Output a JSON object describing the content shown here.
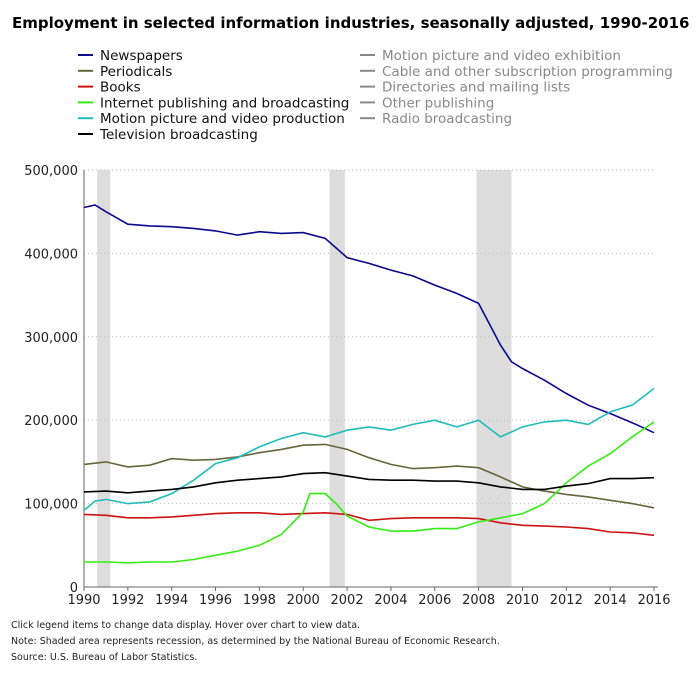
{
  "chart_data": {
    "type": "line",
    "title": "Employment in selected information industries, seasonally adjusted, 1990-2016",
    "xlim": [
      1990,
      2016
    ],
    "ylim": [
      0,
      500000
    ],
    "x_ticks": [
      "1990",
      "1992",
      "1994",
      "1996",
      "1998",
      "2000",
      "2002",
      "2004",
      "2006",
      "2008",
      "2010",
      "2012",
      "2014",
      "2016"
    ],
    "y_ticks": [
      "0",
      "100,000",
      "200,000",
      "300,000",
      "400,000",
      "500,000"
    ],
    "grid": "horizontal dotted",
    "legend_placement": "top",
    "recessions": [
      [
        1990.6,
        1991.2
      ],
      [
        2001.2,
        2001.9
      ],
      [
        2007.9,
        2009.5
      ]
    ],
    "recession_color": "#dddddd",
    "series": [
      {
        "name": "Newspapers",
        "color": "#0a0a8c",
        "active": true,
        "x": [
          1990,
          1990.5,
          1991,
          1992,
          1993,
          1994,
          1995,
          1996,
          1997,
          1998,
          1999,
          2000,
          2001,
          2002,
          2003,
          2004,
          2005,
          2006,
          2007,
          2008,
          2009,
          2009.5,
          2010,
          2011,
          2012,
          2013,
          2014,
          2015,
          2016
        ],
        "y": [
          455000,
          458000,
          450000,
          435000,
          433000,
          432000,
          430000,
          427000,
          422000,
          426000,
          424000,
          425000,
          418000,
          395000,
          388000,
          380000,
          373000,
          362000,
          352000,
          340000,
          290000,
          270000,
          262000,
          248000,
          232000,
          218000,
          208000,
          197000,
          185000
        ]
      },
      {
        "name": "Periodicals",
        "color": "#66663c",
        "active": true,
        "x": [
          1990,
          1991,
          1992,
          1993,
          1994,
          1995,
          1996,
          1997,
          1998,
          1999,
          2000,
          2001,
          2002,
          2003,
          2004,
          2005,
          2006,
          2007,
          2008,
          2009,
          2010,
          2011,
          2012,
          2013,
          2014,
          2015,
          2016
        ],
        "y": [
          147000,
          150000,
          144000,
          146000,
          154000,
          152000,
          153000,
          156000,
          161000,
          165000,
          170000,
          171000,
          165000,
          155000,
          147000,
          142000,
          143000,
          145000,
          143000,
          132000,
          120000,
          115000,
          111000,
          108000,
          104000,
          100000,
          95000
        ]
      },
      {
        "name": "Books",
        "color": "#cc1111",
        "active": true,
        "x": [
          1990,
          1991,
          1992,
          1993,
          1994,
          1995,
          1996,
          1997,
          1998,
          1999,
          2000,
          2001,
          2002,
          2003,
          2004,
          2005,
          2006,
          2007,
          2008,
          2009,
          2010,
          2011,
          2012,
          2013,
          2014,
          2015,
          2016
        ],
        "y": [
          87000,
          86000,
          83000,
          83000,
          84000,
          86000,
          88000,
          89000,
          89000,
          87000,
          88000,
          89000,
          87000,
          80000,
          82000,
          83000,
          83000,
          83000,
          82000,
          77000,
          74000,
          73000,
          72000,
          70000,
          66000,
          65000,
          62000
        ]
      },
      {
        "name": "Internet publishing and broadcasting",
        "color": "#33ee11",
        "active": true,
        "x": [
          1990,
          1991,
          1992,
          1993,
          1994,
          1995,
          1996,
          1997,
          1998,
          1999,
          2000,
          2000.3,
          2001,
          2001.5,
          2002,
          2003,
          2004,
          2005,
          2006,
          2007,
          2008,
          2009,
          2010,
          2011,
          2012,
          2013,
          2014,
          2015,
          2016
        ],
        "y": [
          30000,
          30000,
          29000,
          30000,
          30000,
          33000,
          38000,
          43000,
          50000,
          63000,
          90000,
          112000,
          112000,
          100000,
          85000,
          72000,
          67000,
          67000,
          70000,
          70000,
          78000,
          83000,
          88000,
          100000,
          125000,
          145000,
          160000,
          180000,
          198000
        ]
      },
      {
        "name": "Motion picture and video production",
        "color": "#22bbbb",
        "active": true,
        "x": [
          1990,
          1990.5,
          1991,
          1992,
          1993,
          1994,
          1995,
          1996,
          1997,
          1998,
          1999,
          2000,
          2001,
          2002,
          2003,
          2004,
          2005,
          2006,
          2007,
          2008,
          2009,
          2010,
          2011,
          2012,
          2013,
          2014,
          2015,
          2016
        ],
        "y": [
          92000,
          103000,
          105000,
          100000,
          102000,
          112000,
          128000,
          148000,
          155000,
          168000,
          178000,
          185000,
          180000,
          188000,
          192000,
          188000,
          195000,
          200000,
          192000,
          200000,
          180000,
          192000,
          198000,
          200000,
          195000,
          210000,
          218000,
          238000
        ]
      },
      {
        "name": "Television broadcasting",
        "color": "#000000",
        "active": true,
        "x": [
          1990,
          1991,
          1992,
          1993,
          1994,
          1995,
          1996,
          1997,
          1998,
          1999,
          2000,
          2001,
          2002,
          2003,
          2004,
          2005,
          2006,
          2007,
          2008,
          2009,
          2010,
          2011,
          2012,
          2013,
          2014,
          2015,
          2016
        ],
        "y": [
          114000,
          115000,
          113000,
          115000,
          117000,
          120000,
          125000,
          128000,
          130000,
          132000,
          136000,
          137000,
          133000,
          129000,
          128000,
          128000,
          127000,
          127000,
          125000,
          120000,
          117000,
          117000,
          121000,
          124000,
          130000,
          130000,
          131000
        ]
      },
      {
        "name": "Motion picture and video exhibition",
        "color": "#888888",
        "active": false
      },
      {
        "name": "Cable and other subscription programming",
        "color": "#888888",
        "active": false
      },
      {
        "name": "Directories and mailing lists",
        "color": "#888888",
        "active": false
      },
      {
        "name": "Other publishing",
        "color": "#888888",
        "active": false
      },
      {
        "name": "Radio broadcasting",
        "color": "#888888",
        "active": false
      }
    ]
  },
  "notes": [
    "Click legend items to change data display. Hover over chart to view data.",
    "Note: Shaded area represents recession, as determined by the National Bureau of Economic Research.",
    "Source: U.S. Bureau of Labor Statistics."
  ]
}
